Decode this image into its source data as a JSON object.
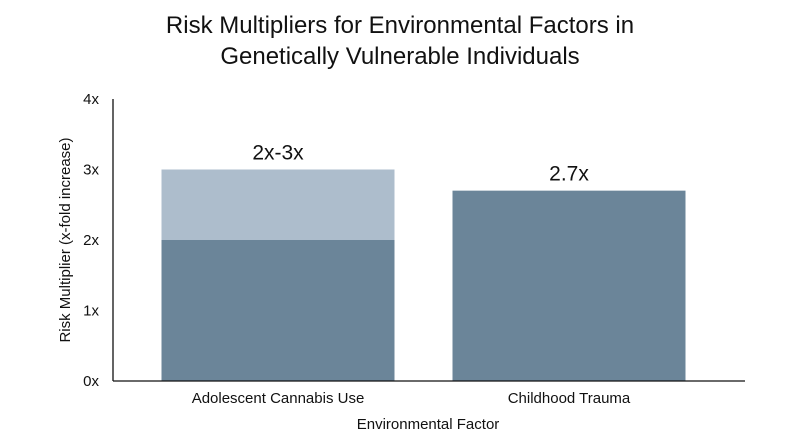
{
  "chart_data": {
    "type": "bar",
    "title_lines": [
      "Risk Multipliers for Environmental Factors in",
      "Genetically Vulnerable Individuals"
    ],
    "xlabel": "Environmental Factor",
    "ylabel": "Risk Multiplier (x-fold increase)",
    "ylim": [
      0,
      4
    ],
    "yticks": [
      {
        "value": 0,
        "label": "0x"
      },
      {
        "value": 1,
        "label": "1x"
      },
      {
        "value": 2,
        "label": "2x"
      },
      {
        "value": 3,
        "label": "3x"
      },
      {
        "value": 4,
        "label": "4x"
      }
    ],
    "categories": [
      "Adolescent Cannabis Use",
      "Childhood Trauma"
    ],
    "bars": [
      {
        "category": "Adolescent Cannabis Use",
        "low": 2,
        "high": 3,
        "label": "2x-3x"
      },
      {
        "category": "Childhood Trauma",
        "low": 2.7,
        "high": 2.7,
        "label": "2.7x"
      }
    ],
    "grid": false,
    "colors": {
      "bar": "#6b8599",
      "range": "#adbdcc",
      "axis": "#111111"
    }
  }
}
